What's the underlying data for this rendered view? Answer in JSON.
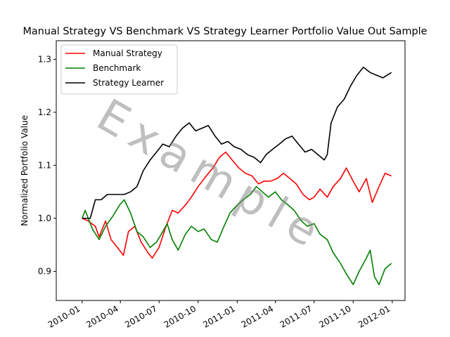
{
  "chart_data": {
    "type": "line",
    "title": "Manual Strategy VS Benchmark VS Strategy Learner Portfolio Value Out Sample",
    "xlabel": "",
    "ylabel": "Normalized Portfolio Value",
    "xlim": [
      "2009-11-01",
      "2012-01-31"
    ],
    "ylim": [
      0.845,
      1.335
    ],
    "x_ticks": [
      "2010-01",
      "2010-04",
      "2010-07",
      "2010-10",
      "2011-01",
      "2011-04",
      "2011-07",
      "2011-10",
      "2012-01"
    ],
    "y_ticks": [
      "0.9",
      "1.0",
      "1.1",
      "1.2",
      "1.3"
    ],
    "grid": false,
    "legend": "top-left",
    "watermark": "Example",
    "series": [
      {
        "name": "Manual Strategy",
        "color": "#ff0000",
        "points": [
          [
            "2010-01-01",
            1.0
          ],
          [
            "2010-01-15",
            0.995
          ],
          [
            "2010-02-01",
            0.985
          ],
          [
            "2010-02-10",
            0.965
          ],
          [
            "2010-02-25",
            0.995
          ],
          [
            "2010-03-10",
            0.96
          ],
          [
            "2010-03-25",
            0.945
          ],
          [
            "2010-04-08",
            0.93
          ],
          [
            "2010-04-20",
            0.975
          ],
          [
            "2010-05-05",
            0.985
          ],
          [
            "2010-05-20",
            0.955
          ],
          [
            "2010-06-05",
            0.935
          ],
          [
            "2010-06-15",
            0.925
          ],
          [
            "2010-07-01",
            0.945
          ],
          [
            "2010-07-15",
            0.98
          ],
          [
            "2010-08-01",
            1.015
          ],
          [
            "2010-08-15",
            1.01
          ],
          [
            "2010-09-01",
            1.025
          ],
          [
            "2010-09-15",
            1.04
          ],
          [
            "2010-10-01",
            1.06
          ],
          [
            "2010-10-20",
            1.08
          ],
          [
            "2010-11-05",
            1.095
          ],
          [
            "2010-11-20",
            1.115
          ],
          [
            "2010-12-05",
            1.125
          ],
          [
            "2010-12-20",
            1.11
          ],
          [
            "2011-01-05",
            1.095
          ],
          [
            "2011-01-20",
            1.085
          ],
          [
            "2011-02-05",
            1.08
          ],
          [
            "2011-02-20",
            1.065
          ],
          [
            "2011-03-05",
            1.07
          ],
          [
            "2011-03-20",
            1.07
          ],
          [
            "2011-04-05",
            1.075
          ],
          [
            "2011-04-20",
            1.085
          ],
          [
            "2011-05-05",
            1.075
          ],
          [
            "2011-05-20",
            1.065
          ],
          [
            "2011-06-05",
            1.045
          ],
          [
            "2011-06-20",
            1.035
          ],
          [
            "2011-07-01",
            1.04
          ],
          [
            "2011-07-15",
            1.055
          ],
          [
            "2011-08-01",
            1.04
          ],
          [
            "2011-08-15",
            1.06
          ],
          [
            "2011-09-01",
            1.075
          ],
          [
            "2011-09-15",
            1.095
          ],
          [
            "2011-10-01",
            1.07
          ],
          [
            "2011-10-15",
            1.05
          ],
          [
            "2011-11-01",
            1.075
          ],
          [
            "2011-11-15",
            1.03
          ],
          [
            "2011-12-01",
            1.06
          ],
          [
            "2011-12-15",
            1.085
          ],
          [
            "2011-12-30",
            1.08
          ]
        ]
      },
      {
        "name": "Benchmark",
        "color": "#008000",
        "points": [
          [
            "2010-01-01",
            1.0
          ],
          [
            "2010-01-08",
            1.015
          ],
          [
            "2010-01-25",
            0.98
          ],
          [
            "2010-02-10",
            0.96
          ],
          [
            "2010-02-25",
            0.985
          ],
          [
            "2010-03-15",
            1.005
          ],
          [
            "2010-03-30",
            1.025
          ],
          [
            "2010-04-10",
            1.035
          ],
          [
            "2010-04-25",
            1.01
          ],
          [
            "2010-05-10",
            0.975
          ],
          [
            "2010-05-25",
            0.965
          ],
          [
            "2010-06-10",
            0.945
          ],
          [
            "2010-06-25",
            0.955
          ],
          [
            "2010-07-10",
            0.975
          ],
          [
            "2010-07-20",
            0.99
          ],
          [
            "2010-08-01",
            0.96
          ],
          [
            "2010-08-15",
            0.94
          ],
          [
            "2010-09-01",
            0.97
          ],
          [
            "2010-09-15",
            0.985
          ],
          [
            "2010-10-01",
            0.975
          ],
          [
            "2010-10-15",
            0.98
          ],
          [
            "2010-11-01",
            0.96
          ],
          [
            "2010-11-15",
            0.955
          ],
          [
            "2010-12-01",
            0.985
          ],
          [
            "2010-12-15",
            1.01
          ],
          [
            "2011-01-01",
            1.025
          ],
          [
            "2011-01-15",
            1.035
          ],
          [
            "2011-02-01",
            1.045
          ],
          [
            "2011-02-15",
            1.06
          ],
          [
            "2011-03-01",
            1.05
          ],
          [
            "2011-03-15",
            1.04
          ],
          [
            "2011-04-01",
            1.05
          ],
          [
            "2011-04-15",
            1.035
          ],
          [
            "2011-05-01",
            1.025
          ],
          [
            "2011-05-15",
            1.015
          ],
          [
            "2011-06-01",
            0.995
          ],
          [
            "2011-06-15",
            0.985
          ],
          [
            "2011-07-01",
            0.99
          ],
          [
            "2011-07-15",
            0.97
          ],
          [
            "2011-08-01",
            0.96
          ],
          [
            "2011-08-15",
            0.935
          ],
          [
            "2011-09-01",
            0.915
          ],
          [
            "2011-09-15",
            0.895
          ],
          [
            "2011-10-01",
            0.875
          ],
          [
            "2011-10-15",
            0.9
          ],
          [
            "2011-11-01",
            0.925
          ],
          [
            "2011-11-10",
            0.94
          ],
          [
            "2011-11-20",
            0.89
          ],
          [
            "2011-12-01",
            0.875
          ],
          [
            "2011-12-15",
            0.905
          ],
          [
            "2011-12-30",
            0.915
          ]
        ]
      },
      {
        "name": "Strategy Learner",
        "color": "#000000",
        "points": [
          [
            "2010-01-01",
            1.0
          ],
          [
            "2010-01-20",
            1.0
          ],
          [
            "2010-02-01",
            1.035
          ],
          [
            "2010-02-15",
            1.035
          ],
          [
            "2010-03-01",
            1.045
          ],
          [
            "2010-03-20",
            1.045
          ],
          [
            "2010-04-10",
            1.045
          ],
          [
            "2010-04-25",
            1.05
          ],
          [
            "2010-05-10",
            1.06
          ],
          [
            "2010-05-25",
            1.09
          ],
          [
            "2010-06-10",
            1.11
          ],
          [
            "2010-06-25",
            1.125
          ],
          [
            "2010-07-10",
            1.14
          ],
          [
            "2010-07-25",
            1.135
          ],
          [
            "2010-08-10",
            1.155
          ],
          [
            "2010-08-25",
            1.17
          ],
          [
            "2010-09-10",
            1.18
          ],
          [
            "2010-09-25",
            1.165
          ],
          [
            "2010-10-10",
            1.17
          ],
          [
            "2010-10-25",
            1.175
          ],
          [
            "2010-11-10",
            1.155
          ],
          [
            "2010-11-25",
            1.14
          ],
          [
            "2010-12-10",
            1.145
          ],
          [
            "2010-12-25",
            1.135
          ],
          [
            "2011-01-10",
            1.13
          ],
          [
            "2011-01-25",
            1.12
          ],
          [
            "2011-02-10",
            1.115
          ],
          [
            "2011-02-25",
            1.105
          ],
          [
            "2011-03-10",
            1.12
          ],
          [
            "2011-03-25",
            1.13
          ],
          [
            "2011-04-10",
            1.14
          ],
          [
            "2011-04-25",
            1.15
          ],
          [
            "2011-05-10",
            1.155
          ],
          [
            "2011-05-25",
            1.14
          ],
          [
            "2011-06-10",
            1.125
          ],
          [
            "2011-06-25",
            1.13
          ],
          [
            "2011-07-10",
            1.12
          ],
          [
            "2011-07-25",
            1.11
          ],
          [
            "2011-08-01",
            1.12
          ],
          [
            "2011-08-10",
            1.18
          ],
          [
            "2011-08-25",
            1.21
          ],
          [
            "2011-09-10",
            1.225
          ],
          [
            "2011-09-25",
            1.25
          ],
          [
            "2011-10-10",
            1.27
          ],
          [
            "2011-10-25",
            1.285
          ],
          [
            "2011-11-10",
            1.275
          ],
          [
            "2011-11-25",
            1.27
          ],
          [
            "2011-12-10",
            1.265
          ],
          [
            "2011-12-20",
            1.27
          ],
          [
            "2011-12-30",
            1.275
          ]
        ]
      }
    ]
  }
}
